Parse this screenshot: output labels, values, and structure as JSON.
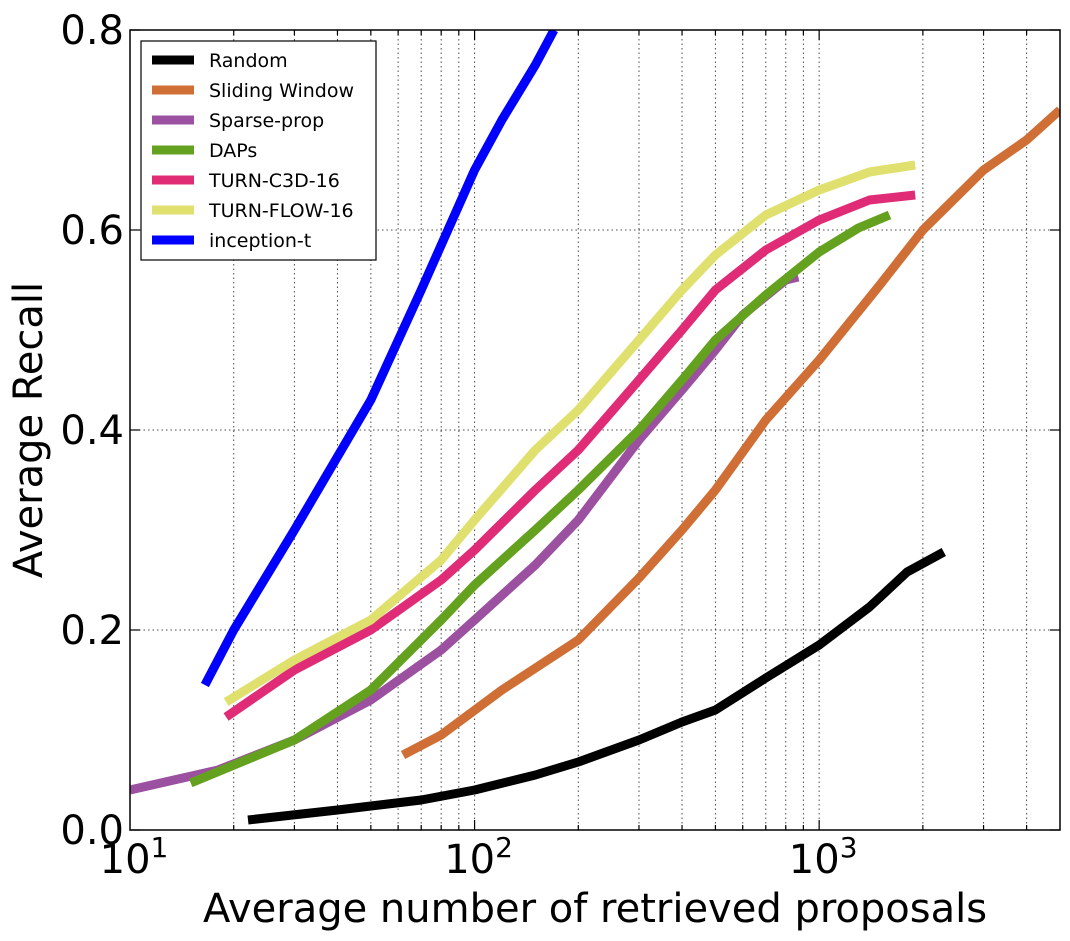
{
  "chart_data": {
    "type": "line",
    "xlabel": "Average number of retrieved proposals",
    "ylabel": "Average Recall",
    "x_scale": "log",
    "xlim": [
      10,
      5000
    ],
    "ylim": [
      0.0,
      0.8
    ],
    "x_ticks": [
      {
        "value": 10,
        "base": "10",
        "exp": "1"
      },
      {
        "value": 100,
        "base": "10",
        "exp": "2"
      },
      {
        "value": 1000,
        "base": "10",
        "exp": "3"
      }
    ],
    "y_ticks": [
      {
        "value": 0.0,
        "label": "0.0"
      },
      {
        "value": 0.2,
        "label": "0.2"
      },
      {
        "value": 0.4,
        "label": "0.4"
      },
      {
        "value": 0.6,
        "label": "0.6"
      },
      {
        "value": 0.8,
        "label": "0.8"
      }
    ],
    "grid": true,
    "legend_position": "top-left",
    "series": [
      {
        "name": "Random",
        "color": "#000000",
        "points": [
          [
            22,
            0.01
          ],
          [
            40,
            0.02
          ],
          [
            70,
            0.03
          ],
          [
            100,
            0.04
          ],
          [
            150,
            0.055
          ],
          [
            200,
            0.068
          ],
          [
            300,
            0.09
          ],
          [
            400,
            0.108
          ],
          [
            500,
            0.12
          ],
          [
            700,
            0.152
          ],
          [
            1000,
            0.185
          ],
          [
            1400,
            0.223
          ],
          [
            1800,
            0.258
          ],
          [
            2300,
            0.278
          ]
        ]
      },
      {
        "name": "Sliding Window",
        "color": "#cf6f35",
        "points": [
          [
            62,
            0.075
          ],
          [
            80,
            0.095
          ],
          [
            120,
            0.14
          ],
          [
            200,
            0.19
          ],
          [
            300,
            0.252
          ],
          [
            400,
            0.3
          ],
          [
            500,
            0.34
          ],
          [
            700,
            0.41
          ],
          [
            1000,
            0.47
          ],
          [
            1500,
            0.545
          ],
          [
            2000,
            0.6
          ],
          [
            3000,
            0.66
          ],
          [
            4000,
            0.69
          ],
          [
            5000,
            0.72
          ]
        ]
      },
      {
        "name": "Sparse-prop",
        "color": "#9b50a0",
        "points": [
          [
            10,
            0.04
          ],
          [
            18,
            0.06
          ],
          [
            30,
            0.09
          ],
          [
            50,
            0.13
          ],
          [
            80,
            0.18
          ],
          [
            100,
            0.21
          ],
          [
            150,
            0.265
          ],
          [
            200,
            0.31
          ],
          [
            300,
            0.39
          ],
          [
            400,
            0.44
          ],
          [
            500,
            0.48
          ],
          [
            600,
            0.515
          ],
          [
            800,
            0.55
          ],
          [
            870,
            0.553
          ]
        ]
      },
      {
        "name": "DAPs",
        "color": "#64a11f",
        "points": [
          [
            15,
            0.047
          ],
          [
            30,
            0.09
          ],
          [
            50,
            0.14
          ],
          [
            80,
            0.21
          ],
          [
            100,
            0.245
          ],
          [
            150,
            0.3
          ],
          [
            200,
            0.34
          ],
          [
            300,
            0.4
          ],
          [
            400,
            0.45
          ],
          [
            500,
            0.49
          ],
          [
            700,
            0.535
          ],
          [
            1000,
            0.578
          ],
          [
            1300,
            0.602
          ],
          [
            1600,
            0.615
          ]
        ]
      },
      {
        "name": "TURN-C3D-16",
        "color": "#e02c77",
        "points": [
          [
            19,
            0.113
          ],
          [
            30,
            0.16
          ],
          [
            50,
            0.2
          ],
          [
            80,
            0.25
          ],
          [
            100,
            0.28
          ],
          [
            150,
            0.34
          ],
          [
            200,
            0.38
          ],
          [
            300,
            0.45
          ],
          [
            400,
            0.5
          ],
          [
            500,
            0.54
          ],
          [
            700,
            0.58
          ],
          [
            1000,
            0.61
          ],
          [
            1400,
            0.63
          ],
          [
            1900,
            0.635
          ]
        ]
      },
      {
        "name": "TURN-FLOW-16",
        "color": "#e0e06e",
        "points": [
          [
            19,
            0.128
          ],
          [
            30,
            0.17
          ],
          [
            50,
            0.21
          ],
          [
            80,
            0.27
          ],
          [
            100,
            0.31
          ],
          [
            150,
            0.38
          ],
          [
            200,
            0.42
          ],
          [
            300,
            0.49
          ],
          [
            400,
            0.54
          ],
          [
            500,
            0.575
          ],
          [
            700,
            0.615
          ],
          [
            1000,
            0.64
          ],
          [
            1400,
            0.658
          ],
          [
            1900,
            0.665
          ]
        ]
      },
      {
        "name": "inception-t",
        "color": "#0000ff",
        "points": [
          [
            16.5,
            0.145
          ],
          [
            20,
            0.2
          ],
          [
            30,
            0.3
          ],
          [
            50,
            0.43
          ],
          [
            70,
            0.54
          ],
          [
            100,
            0.66
          ],
          [
            120,
            0.71
          ],
          [
            150,
            0.765
          ],
          [
            170,
            0.8
          ]
        ]
      }
    ]
  }
}
